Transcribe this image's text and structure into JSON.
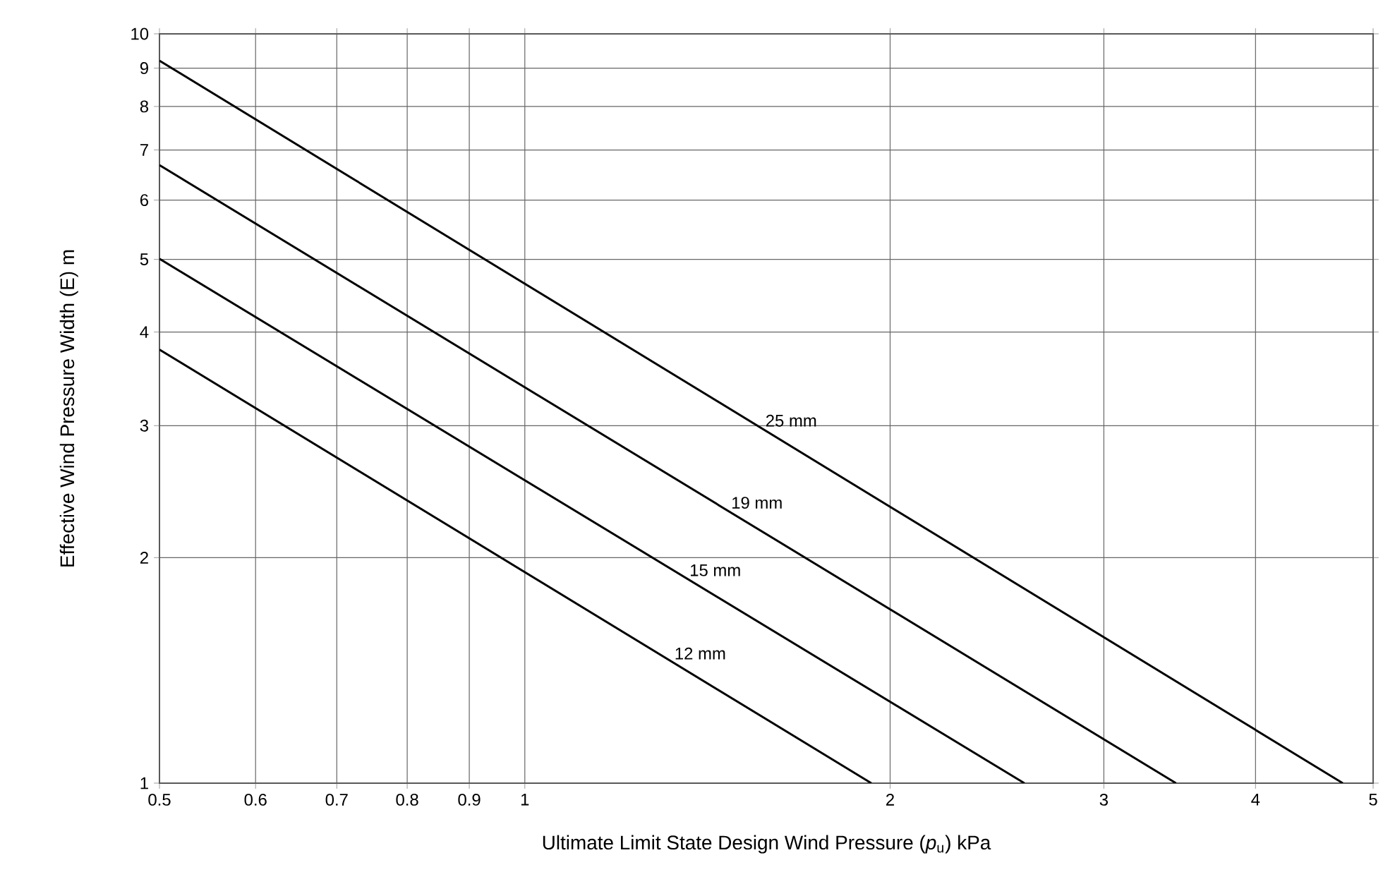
{
  "chart_data": {
    "type": "line",
    "xlabel": "Ultimate Limit State Design Wind Pressure (*p*$_{u}$) kPa",
    "ylabel": "Effective Wind Pressure Width (E) m",
    "log": "xy",
    "grid": true,
    "marker": "none",
    "line_style": "solid",
    "xlim": [
      0.5,
      5
    ],
    "ylim": [
      1,
      10
    ],
    "xticks": [
      0.5,
      0.6,
      0.7,
      0.8,
      0.9,
      1,
      2,
      3,
      4,
      5
    ],
    "yticks": [
      1,
      2,
      3,
      4,
      5,
      6,
      7,
      8,
      9,
      10
    ],
    "series": [
      {
        "name": "25 mm",
        "color": "#000000",
        "x": [
          0.5,
          4.72
        ],
        "values": [
          9.21,
          1
        ]
      },
      {
        "name": "19 mm",
        "color": "#000000",
        "x": [
          0.5,
          3.44
        ],
        "values": [
          6.68,
          1
        ]
      },
      {
        "name": "15 mm",
        "color": "#000000",
        "x": [
          0.5,
          2.58
        ],
        "values": [
          5.01,
          1
        ]
      },
      {
        "name": "12 mm",
        "color": "#000000",
        "x": [
          0.5,
          1.93
        ],
        "values": [
          3.79,
          1
        ]
      }
    ]
  }
}
